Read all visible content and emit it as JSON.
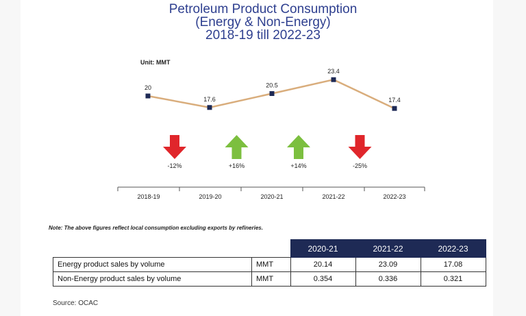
{
  "title": {
    "line1": "Petroleum Product Consumption",
    "line2": "(Energy & Non-Energy)",
    "line3": "2018-19 till 2022-23"
  },
  "unit_label": "Unit: MMT",
  "colors": {
    "title": "#2e3f8f",
    "line": "#d9ad7c",
    "marker": "#1e2a55",
    "down_arrow": "#e0262b",
    "up_arrow": "#7cbf3f",
    "table_header": "#1e2a55"
  },
  "chart_data": {
    "type": "line",
    "categories": [
      "2018-19",
      "2019-20",
      "2020-21",
      "2021-22",
      "2022-23"
    ],
    "values": [
      20,
      17.6,
      20.5,
      23.4,
      17.4
    ],
    "value_labels": [
      "20",
      "17.6",
      "20.5",
      "23.4",
      "17.4"
    ],
    "ylim": [
      15,
      25
    ],
    "changes": [
      {
        "direction": "down",
        "label": "-12%"
      },
      {
        "direction": "up",
        "label": "+16%"
      },
      {
        "direction": "up",
        "label": "+14%"
      },
      {
        "direction": "down",
        "label": "-25%"
      }
    ],
    "grid": false
  },
  "note": "Note: The above figures reflect local consumption excluding exports by refineries.",
  "table": {
    "headers": [
      "2020-21",
      "2021-22",
      "2022-23"
    ],
    "rows": [
      {
        "label": "Energy product sales by volume",
        "unit": "MMT",
        "values": [
          "20.14",
          "23.09",
          "17.08"
        ]
      },
      {
        "label": "Non-Energy product sales by volume",
        "unit": "MMT",
        "values": [
          "0.354",
          "0.336",
          "0.321"
        ]
      }
    ]
  },
  "source": "Source: OCAC"
}
